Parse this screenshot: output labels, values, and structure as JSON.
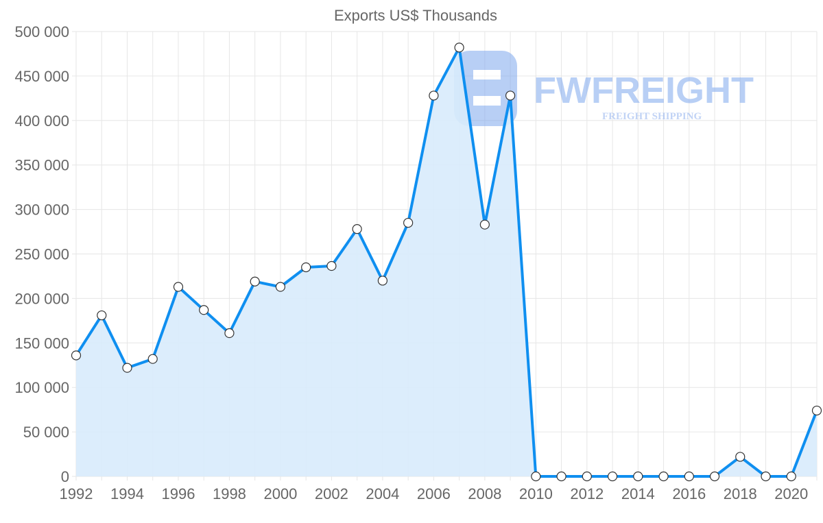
{
  "chart_data": {
    "type": "line",
    "title": "Exports US$ Thousands",
    "xlabel": "",
    "ylabel": "",
    "x": [
      1992,
      1993,
      1994,
      1995,
      1996,
      1997,
      1998,
      1999,
      2000,
      2001,
      2002,
      2003,
      2004,
      2005,
      2006,
      2007,
      2008,
      2009,
      2010,
      2011,
      2012,
      2013,
      2014,
      2015,
      2016,
      2017,
      2018,
      2019,
      2020,
      2021
    ],
    "series": [
      {
        "name": "Exports US$ Thousands",
        "values": [
          136000,
          181000,
          122000,
          132000,
          213000,
          187000,
          161000,
          219000,
          213000,
          235000,
          236500,
          278000,
          220000,
          285000,
          428000,
          482000,
          283000,
          428000,
          0,
          0,
          0,
          0,
          0,
          0,
          0,
          0,
          22000,
          0,
          0,
          74000
        ]
      }
    ],
    "xlim": [
      1992,
      2021
    ],
    "ylim": [
      0,
      500000
    ],
    "yticks": [
      "0",
      "50 000",
      "100 000",
      "150 000",
      "200 000",
      "250 000",
      "300 000",
      "350 000",
      "400 000",
      "450 000",
      "500 000"
    ],
    "xticks": [
      "1992",
      "1994",
      "1996",
      "1998",
      "2000",
      "2002",
      "2004",
      "2006",
      "2008",
      "2010",
      "2012",
      "2014",
      "2016",
      "2018",
      "2020"
    ],
    "grid": true,
    "legend": "none",
    "colors": {
      "line": "#0f8ff0",
      "fill": "#d8ebfc",
      "marker_fill": "#ffffff",
      "marker_stroke": "#333333"
    }
  },
  "watermark": {
    "logo_text": "FWFREIGHT",
    "tagline": "FREIGHT SHIPPING"
  }
}
